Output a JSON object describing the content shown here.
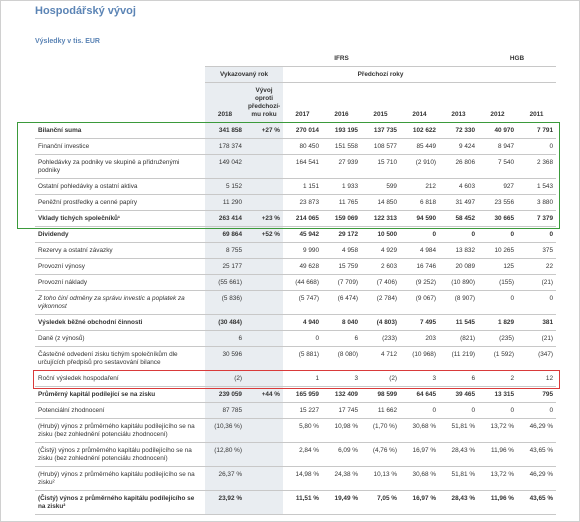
{
  "header": {
    "title": "Hospodářský vývoj",
    "subtitle": "Výsledky v tis. EUR"
  },
  "table": {
    "groups": [
      "IFRS",
      "HGB"
    ],
    "subgroups": [
      "Vykazovaný rok",
      "Předchozí roky"
    ],
    "columns": [
      "2018",
      "Vývoj oproti předchozí-mu roku",
      "2017",
      "2016",
      "2015",
      "2014",
      "2013",
      "2012",
      "2011"
    ],
    "rows": [
      [
        "Bilanční suma",
        "341 858",
        "+27 %",
        "270 014",
        "193 195",
        "137 735",
        "102 622",
        "72 330",
        "40 970",
        "7 791"
      ],
      [
        "Finanční investice",
        "178 374",
        null,
        "80 450",
        "151 558",
        "108 577",
        "85 449",
        "9 424",
        "8 947",
        "0"
      ],
      [
        "Pohledávky za podniky ve skupině a přidruženými podniky",
        "149 042",
        null,
        "164 541",
        "27 939",
        "15 710",
        "(2 910)",
        "26 806",
        "7 540",
        "2 368"
      ],
      [
        "Ostatní pohledávky a ostatní aktiva",
        "5 152",
        null,
        "1 151",
        "1 933",
        "599",
        "212",
        "4 603",
        "927",
        "1 543"
      ],
      [
        "Peněžní prostředky a cenné papíry",
        "11 290",
        null,
        "23 873",
        "11 765",
        "14 850",
        "6 818",
        "31 497",
        "23 556",
        "3 880"
      ],
      [
        "Vklady tichých společníků¹",
        "263 414",
        "+23 %",
        "214 065",
        "159 069",
        "122 313",
        "94 590",
        "58 452",
        "30 665",
        "7 379"
      ],
      [
        "Dividendy",
        "69 864",
        "+52 %",
        "45 942",
        "29 172",
        "10 500",
        "0",
        "0",
        "0",
        "0"
      ],
      [
        "Rezervy a ostatní závazky",
        "8 755",
        null,
        "9 990",
        "4 958",
        "4 929",
        "4 984",
        "13 832",
        "10 265",
        "375"
      ],
      [
        "Provozní výnosy",
        "25 177",
        null,
        "49 628",
        "15 759",
        "2 603",
        "16 746",
        "20 089",
        "125",
        "22"
      ],
      [
        "Provozní náklady",
        "(55 661)",
        null,
        "(44 668)",
        "(7 709)",
        "(7 406)",
        "(9 252)",
        "(10 890)",
        "(155)",
        "(21)"
      ],
      [
        "Z toho činí odměny za správu investic a poplatek za výkonnost",
        "(5 836)",
        null,
        "(5 747)",
        "(6 474)",
        "(2 784)",
        "(9 067)",
        "(8 907)",
        "0",
        "0"
      ],
      [
        "Výsledek běžné obchodní činnosti",
        "(30 484)",
        null,
        "4 940",
        "8 040",
        "(4 803)",
        "7 495",
        "11 545",
        "1 829",
        "381"
      ],
      [
        "Daně (z výnosů)",
        "6",
        null,
        "0",
        "6",
        "(233)",
        "203",
        "(821)",
        "(235)",
        "(21)"
      ],
      [
        "Částečné odvedení zisku tichým společníkům dle určujících předpisů pro sestavování bilance",
        "30 596",
        null,
        "(5 881)",
        "(8 080)",
        "4 712",
        "(10 968)",
        "(11 219)",
        "(1 592)",
        "(347)"
      ],
      [
        "Roční výsledek hospodaření",
        "(2)",
        null,
        "1",
        "3",
        "(2)",
        "3",
        "6",
        "2",
        "12"
      ],
      [
        "Průměrný kapitál podílející se na zisku",
        "239 059",
        "+44 %",
        "165 959",
        "132 409",
        "98 599",
        "64 645",
        "39 465",
        "13 315",
        "795"
      ],
      [
        "Potenciální zhodnocení",
        "87 785",
        null,
        "15 227",
        "17 745",
        "11 662",
        "0",
        "0",
        "0",
        "0"
      ],
      [
        "(Hrubý) výnos z průměrného kapitálu podílejícího se na zisku (bez zohlednění potenciálu zhodnocení)",
        "(10,36 %)",
        null,
        "5,80 %",
        "10,98 %",
        "(1,70 %)",
        "30,68 %",
        "51,81 %",
        "13,72 %",
        "46,29 %"
      ],
      [
        "(Čistý) výnos z průměrného kapitálu podílejícího se na zisku (bez zohlednění potenciálu zhodnocení)",
        "(12,80 %)",
        null,
        "2,84 %",
        "6,09 %",
        "(4,76 %)",
        "16,97 %",
        "28,43 %",
        "11,96 %",
        "43,65 %"
      ],
      [
        "(Hrubý) výnos z průměrného kapitálu podílejícího se na zisku²",
        "26,37 %",
        null,
        "14,98 %",
        "24,38 %",
        "10,13 %",
        "30,68 %",
        "51,81 %",
        "13,72 %",
        "46,29 %"
      ],
      [
        "(Čistý) výnos z průměrného kapitálu podílejícího se na zisku²",
        "23,92 %",
        null,
        "11,51 %",
        "19,49 %",
        "7,05 %",
        "16,97 %",
        "28,43 %",
        "11,96 %",
        "43,65 %"
      ]
    ]
  }
}
